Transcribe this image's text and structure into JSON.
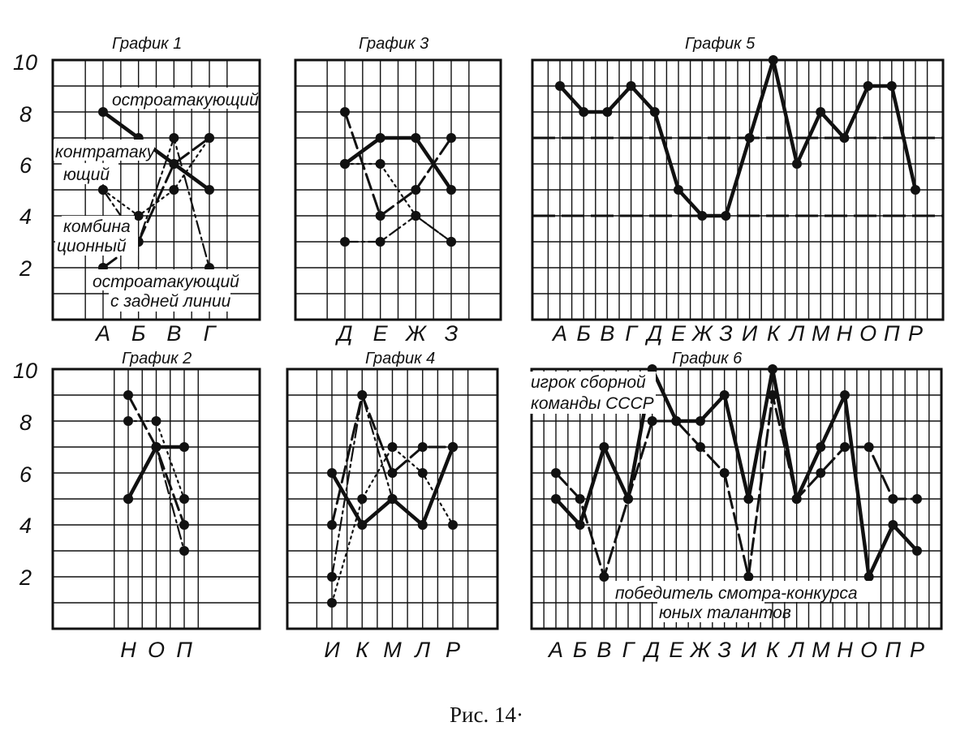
{
  "caption": "Рис. 14·",
  "y_ticks": [
    "10",
    "8",
    "6",
    "4",
    "2"
  ],
  "chart_data": [
    {
      "type": "line",
      "title": "График 1",
      "categories": [
        "А",
        "Б",
        "В",
        "Г"
      ],
      "ylim": [
        0,
        10
      ],
      "grid": true,
      "annotations": [
        "остроатакующий",
        "контратаку",
        "ющий",
        "комбина",
        "ционный",
        "остроатакующий",
        "с задней линии"
      ],
      "series": [
        {
          "name": "остроатакующий",
          "values": [
            8,
            7,
            6,
            5
          ],
          "style": "solid"
        },
        {
          "name": "контратакующий",
          "values": [
            2,
            3,
            6,
            7
          ],
          "style": "dashed"
        },
        {
          "name": "комбинационный",
          "values": [
            5,
            4,
            5,
            7
          ],
          "style": "dotted"
        },
        {
          "name": "остроатакующий с задней линии",
          "values": [
            5,
            3,
            7,
            2
          ],
          "style": "dashdot"
        }
      ]
    },
    {
      "type": "line",
      "title": "График 2",
      "categories": [
        "Н",
        "О",
        "П"
      ],
      "ylim": [
        0,
        10
      ],
      "grid": true,
      "series": [
        {
          "values": [
            5,
            7,
            7
          ],
          "style": "solid"
        },
        {
          "values": [
            9,
            7,
            4
          ],
          "style": "dashed"
        },
        {
          "values": [
            8,
            8,
            5
          ],
          "style": "dotted"
        },
        {
          "values": [
            5,
            7,
            3
          ],
          "style": "dashdot"
        }
      ]
    },
    {
      "type": "line",
      "title": "График 3",
      "categories": [
        "Д",
        "Е",
        "Ж",
        "З"
      ],
      "ylim": [
        0,
        10
      ],
      "grid": true,
      "series": [
        {
          "values": [
            6,
            7,
            7,
            5
          ],
          "style": "solid"
        },
        {
          "values": [
            8,
            4,
            5,
            7
          ],
          "style": "dashed"
        },
        {
          "values": [
            6,
            6,
            4,
            3
          ],
          "style": "dotted"
        },
        {
          "values": [
            3,
            3,
            4,
            3
          ],
          "style": "dashdot"
        }
      ]
    },
    {
      "type": "line",
      "title": "График 4",
      "categories": [
        "И",
        "К",
        "М",
        "Л",
        "Р"
      ],
      "ylim": [
        0,
        10
      ],
      "grid": true,
      "series": [
        {
          "values": [
            6,
            4,
            5,
            4,
            7
          ],
          "style": "solid"
        },
        {
          "values": [
            4,
            9,
            6,
            7,
            7
          ],
          "style": "dashed"
        },
        {
          "values": [
            1,
            5,
            7,
            6,
            4
          ],
          "style": "dotted"
        },
        {
          "values": [
            2,
            9,
            5,
            4,
            7
          ],
          "style": "dashdot"
        }
      ]
    },
    {
      "type": "line",
      "title": "График 5",
      "categories": [
        "А",
        "Б",
        "В",
        "Г",
        "Д",
        "Е",
        "Ж",
        "З",
        "И",
        "К",
        "Л",
        "М",
        "Н",
        "О",
        "П",
        "Р"
      ],
      "ylim": [
        0,
        10
      ],
      "grid": true,
      "reference_lines": [
        7,
        4
      ],
      "series": [
        {
          "values": [
            9,
            8,
            8,
            9,
            8,
            5,
            4,
            4,
            7,
            10,
            6,
            8,
            7,
            9,
            9,
            5
          ],
          "style": "solid"
        }
      ]
    },
    {
      "type": "line",
      "title": "График 6",
      "categories": [
        "А",
        "Б",
        "В",
        "Г",
        "Д",
        "Е",
        "Ж",
        "З",
        "И",
        "К",
        "Л",
        "М",
        "Н",
        "О",
        "П",
        "Р"
      ],
      "ylim": [
        0,
        10
      ],
      "grid": true,
      "annotations": [
        "игрок сборной",
        "команды СССР",
        "победитель смотра-конкурса",
        "юных талантов"
      ],
      "series": [
        {
          "name": "игрок сборной команды СССР",
          "values": [
            5,
            4,
            7,
            5,
            10,
            8,
            8,
            9,
            5,
            10,
            5,
            7,
            9,
            2,
            4,
            3
          ],
          "style": "solid"
        },
        {
          "name": "победитель смотра-конкурса юных талантов",
          "values": [
            6,
            5,
            2,
            5,
            8,
            8,
            7,
            6,
            2,
            9,
            5,
            6,
            7,
            7,
            5,
            5
          ],
          "style": "dashed"
        }
      ]
    }
  ]
}
